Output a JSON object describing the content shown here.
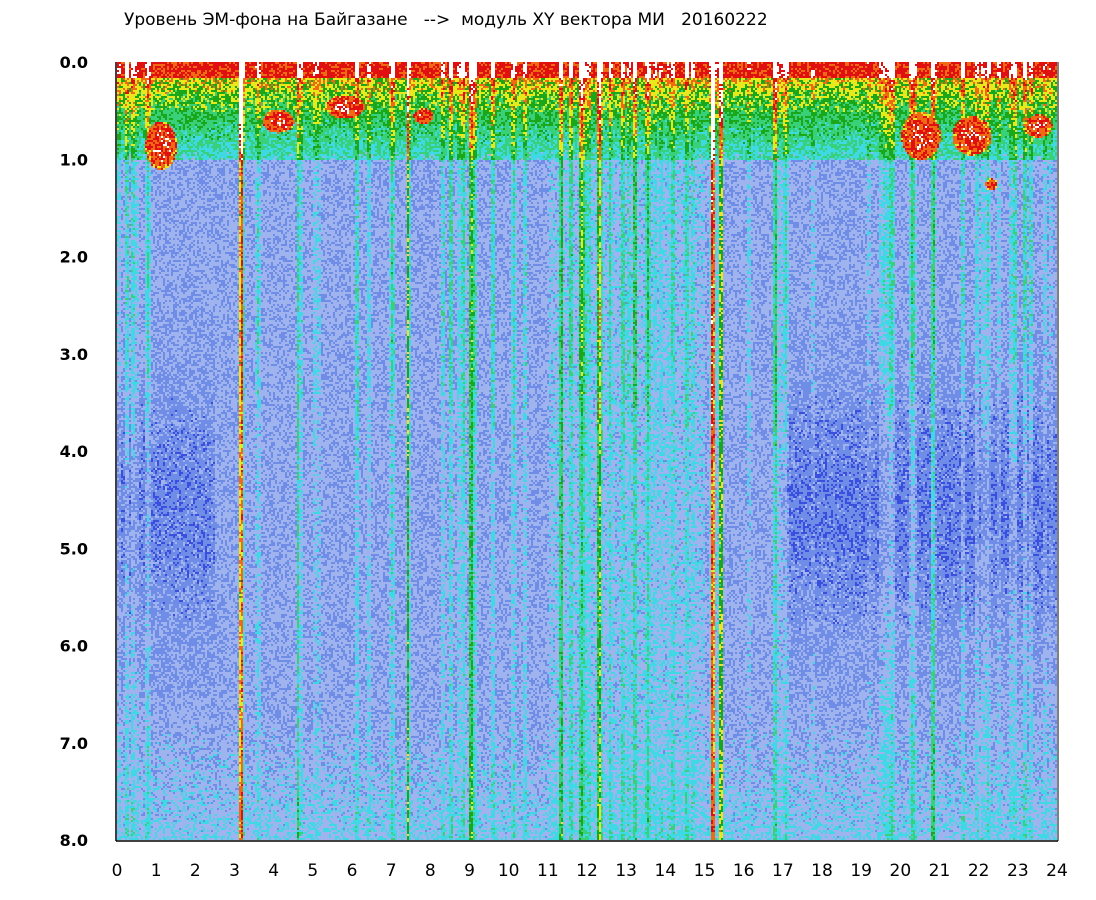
{
  "chart_data": {
    "type": "heatmap",
    "title": "Уровень ЭМ-фона на Байгазане   -->  модуль XY вектора МИ   20160222",
    "xlabel": "",
    "ylabel": "",
    "xlim": [
      0,
      24
    ],
    "ylim": [
      0,
      8
    ],
    "y_inverted": true,
    "x_ticks": [
      "0",
      "1",
      "2",
      "3",
      "4",
      "5",
      "6",
      "7",
      "8",
      "9",
      "10",
      "11",
      "12",
      "13",
      "14",
      "15",
      "16",
      "17",
      "18",
      "19",
      "20",
      "21",
      "22",
      "23",
      "24"
    ],
    "y_ticks": [
      "0.0",
      "1.0",
      "2.0",
      "3.0",
      "4.0",
      "5.0",
      "6.0",
      "7.0",
      "8.0"
    ],
    "colormap": [
      "#1e22d8",
      "#3a4fe0",
      "#6f8de6",
      "#9fb4ee",
      "#3fd9e6",
      "#39d07a",
      "#1aa81a",
      "#e8e81a",
      "#f06a14",
      "#e01010",
      "#ffffff"
    ],
    "grid": false,
    "legend": "none"
  }
}
